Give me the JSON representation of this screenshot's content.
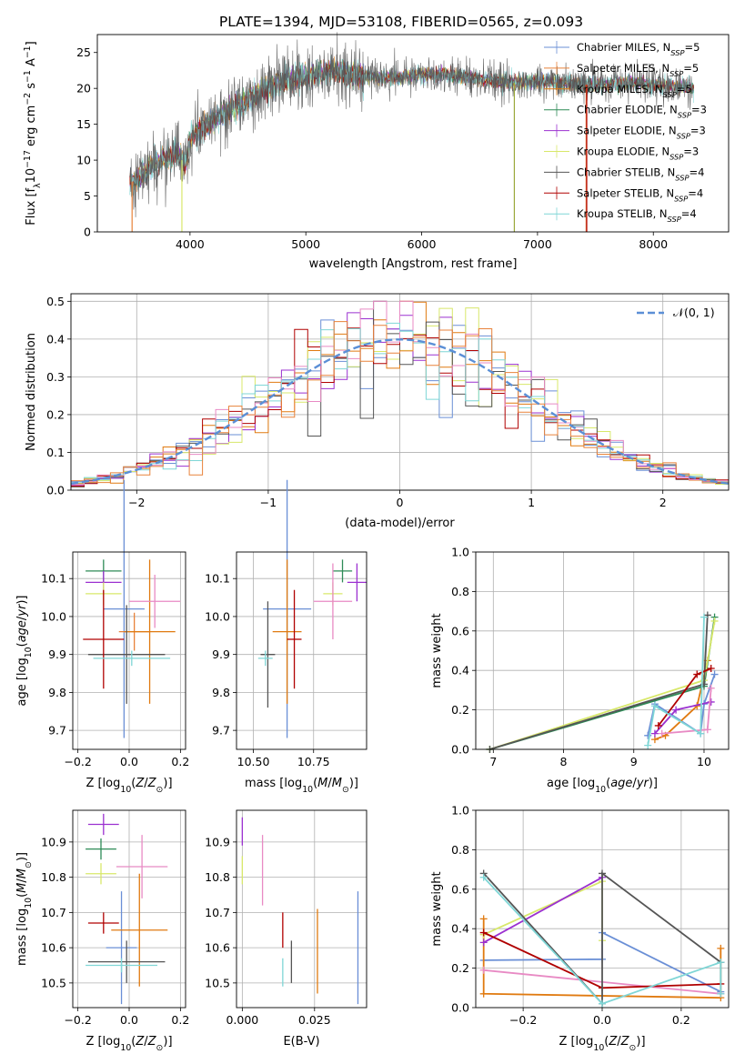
{
  "title": "PLATE=1394, MJD=53108, FIBERID=0565, z=0.093",
  "colors": {
    "Chabrier MILES": "#6a8fd6",
    "Salpeter MILES": "#e8823a",
    "Kroupa MILES": "#e07a10",
    "Chabrier ELODIE": "#2e8b57",
    "Salpeter ELODIE": "#9b30d0",
    "Kroupa ELODIE": "#d8e86a",
    "Chabrier STELIB": "#555555",
    "Salpeter STELIB": "#b00000",
    "Kroupa STELIB": "#7fd6d6",
    "pink": "#e88ac4",
    "olive": "#9aa83a"
  },
  "chart_data": [
    {
      "type": "line",
      "panel": "spectrum",
      "xlabel": "wavelength [Angstrom, rest frame]",
      "ylabel": "Flux [f_λ 10^-17 erg cm^-2 s^-1 A^-1]",
      "xlim": [
        3200,
        8650
      ],
      "ylim": [
        0,
        27.5
      ],
      "xticks": [
        "4000",
        "5000",
        "6000",
        "7000",
        "8000"
      ],
      "yticks": [
        "0",
        "5",
        "10",
        "15",
        "20",
        "25"
      ],
      "legend_position": "right",
      "legend": [
        {
          "label": "Chabrier MILES, N",
          "sub": "SSP",
          "suffix": "=5"
        },
        {
          "label": "Salpeter MILES, N",
          "sub": "SSP",
          "suffix": "=5"
        },
        {
          "label": "Kroupa MILES, N",
          "sub": "SSP",
          "suffix": "=5"
        },
        {
          "label": "Chabrier ELODIE, N",
          "sub": "SSP",
          "suffix": "=3"
        },
        {
          "label": "Salpeter ELODIE, N",
          "sub": "SSP",
          "suffix": "=3"
        },
        {
          "label": "Kroupa ELODIE, N",
          "sub": "SSP",
          "suffix": "=3"
        },
        {
          "label": "Chabrier STELIB, N",
          "sub": "SSP",
          "suffix": "=4"
        },
        {
          "label": "Salpeter STELIB, N",
          "sub": "SSP",
          "suffix": "=4"
        },
        {
          "label": "Kroupa STELIB, N",
          "sub": "SSP",
          "suffix": "=4"
        }
      ],
      "continuum_x": [
        3500,
        3700,
        3900,
        3960,
        4000,
        4200,
        4400,
        4600,
        4800,
        5000,
        5200,
        5400,
        5600,
        5800,
        6000,
        6200,
        6400,
        6600,
        6800,
        7000,
        7200,
        7400,
        7600,
        7800,
        8000,
        8200,
        8350
      ],
      "continuum_y": [
        7,
        9.5,
        11,
        9,
        13,
        15.5,
        17.5,
        19.5,
        21,
        21.5,
        22.5,
        22,
        21.5,
        21.5,
        22,
        22,
        21.5,
        21,
        20.8,
        21,
        20.8,
        20.5,
        20.5,
        20.8,
        20.5,
        20.2,
        20
      ]
    },
    {
      "type": "bar",
      "panel": "residual-histogram",
      "xlabel": "(data-model)/error",
      "ylabel": "Normed distribution",
      "xlim": [
        -2.5,
        2.5
      ],
      "ylim": [
        0,
        0.52
      ],
      "xticks": [
        "−2",
        "−1",
        "0",
        "1",
        "2"
      ],
      "yticks": [
        "0.0",
        "0.1",
        "0.2",
        "0.3",
        "0.4",
        "0.5"
      ],
      "grid": true,
      "legend": "𝒩(0, 1)",
      "legend_position": "top-right",
      "bin_width": 0.1,
      "bins_start": -2.5
    },
    {
      "type": "scatter",
      "panel": "age-vs-Z",
      "xlabel": "Z [log10(Z/Z⊙)]",
      "ylabel": "age  [log10(age/yr)]",
      "xlim": [
        -0.22,
        0.22
      ],
      "ylim": [
        9.65,
        10.17
      ],
      "xticks": [
        "−0.2",
        "0.0",
        "0.2"
      ],
      "yticks": [
        "9.7",
        "9.8",
        "9.9",
        "10.0",
        "10.1"
      ],
      "grid": true,
      "points": [
        {
          "s": "Chabrier MILES",
          "x": -0.02,
          "y": 10.02,
          "xe": 0.08,
          "ye": 0.34
        },
        {
          "s": "Salpeter MILES",
          "x": 0.02,
          "y": 9.96,
          "xe": 0.06,
          "ye": 0.05
        },
        {
          "s": "Kroupa MILES",
          "x": 0.08,
          "y": 9.96,
          "xe": 0.1,
          "ye": 0.19
        },
        {
          "s": "Chabrier ELODIE",
          "x": -0.1,
          "y": 10.12,
          "xe": 0.07,
          "ye": 0.03
        },
        {
          "s": "Salpeter ELODIE",
          "x": -0.1,
          "y": 10.09,
          "xe": 0.07,
          "ye": 0.03
        },
        {
          "s": "Kroupa ELODIE",
          "x": -0.1,
          "y": 10.06,
          "xe": 0.07,
          "ye": 0.03
        },
        {
          "s": "Chabrier STELIB",
          "x": -0.01,
          "y": 9.9,
          "xe": 0.15,
          "ye": 0.13
        },
        {
          "s": "Salpeter STELIB",
          "x": -0.1,
          "y": 9.94,
          "xe": 0.08,
          "ye": 0.13
        },
        {
          "s": "Kroupa STELIB",
          "x": 0.01,
          "y": 9.89,
          "xe": 0.15,
          "ye": 0.02
        },
        {
          "s": "pink",
          "x": 0.1,
          "y": 10.04,
          "xe": 0.1,
          "ye": 0.07
        }
      ]
    },
    {
      "type": "scatter",
      "panel": "age-vs-mass",
      "xlabel": "mass [log10(M/M⊙)]",
      "ylabel": "",
      "xlim": [
        10.43,
        10.97
      ],
      "ylim": [
        9.65,
        10.17
      ],
      "xticks": [
        "10.50",
        "10.75"
      ],
      "yticks": [
        "9.7",
        "9.8",
        "9.9",
        "10.0",
        "10.1"
      ],
      "grid": true,
      "points": [
        {
          "s": "Chabrier MILES",
          "x": 10.64,
          "y": 10.02,
          "xe": 0.1,
          "ye": 0.34
        },
        {
          "s": "Kroupa MILES",
          "x": 10.64,
          "y": 9.96,
          "xe": 0.06,
          "ye": 0.19
        },
        {
          "s": "Chabrier ELODIE",
          "x": 10.87,
          "y": 10.12,
          "xe": 0.04,
          "ye": 0.03
        },
        {
          "s": "Salpeter ELODIE",
          "x": 10.93,
          "y": 10.09,
          "xe": 0.04,
          "ye": 0.05
        },
        {
          "s": "Kroupa ELODIE",
          "x": 10.83,
          "y": 10.06,
          "xe": 0.04,
          "ye": 0.03
        },
        {
          "s": "Chabrier STELIB",
          "x": 10.56,
          "y": 9.9,
          "xe": 0.03,
          "ye": 0.14
        },
        {
          "s": "Salpeter STELIB",
          "x": 10.67,
          "y": 9.94,
          "xe": 0.03,
          "ye": 0.13
        },
        {
          "s": "Kroupa STELIB",
          "x": 10.55,
          "y": 9.89,
          "xe": 0.03,
          "ye": 0.02
        },
        {
          "s": "pink",
          "x": 10.83,
          "y": 10.04,
          "xe": 0.08,
          "ye": 0.1
        }
      ]
    },
    {
      "type": "line",
      "panel": "mass-weight-vs-age",
      "xlabel": "age  [log10(age/yr)]",
      "ylabel": "mass weight",
      "xlim": [
        6.75,
        10.35
      ],
      "ylim": [
        0,
        1
      ],
      "xticks": [
        "7",
        "8",
        "9",
        "10"
      ],
      "yticks": [
        "0.0",
        "0.2",
        "0.4",
        "0.6",
        "0.8",
        "1.0"
      ],
      "grid": true,
      "series": [
        {
          "s": "Chabrier MILES",
          "x": [
            9.2,
            9.3,
            9.95,
            10.0,
            10.15
          ],
          "y": [
            0.07,
            0.23,
            0.08,
            0.23,
            0.38
          ]
        },
        {
          "s": "Kroupa MILES",
          "x": [
            9.3,
            9.45,
            9.9,
            10.05
          ],
          "y": [
            0.05,
            0.07,
            0.22,
            0.45
          ]
        },
        {
          "s": "Chabrier ELODIE",
          "x": [
            6.95,
            10.0,
            10.15
          ],
          "y": [
            0.0,
            0.32,
            0.67
          ]
        },
        {
          "s": "Kroupa ELODIE",
          "x": [
            6.95,
            10.0,
            10.15
          ],
          "y": [
            0.0,
            0.35,
            0.65
          ]
        },
        {
          "s": "Salpeter ELODIE",
          "x": [
            9.3,
            9.6,
            10.1
          ],
          "y": [
            0.08,
            0.2,
            0.24
          ]
        },
        {
          "s": "Chabrier STELIB",
          "x": [
            6.95,
            10.0,
            10.05
          ],
          "y": [
            0.0,
            0.33,
            0.68
          ]
        },
        {
          "s": "Salpeter STELIB",
          "x": [
            9.35,
            9.9,
            10.1
          ],
          "y": [
            0.12,
            0.38,
            0.41
          ]
        },
        {
          "s": "pink",
          "x": [
            9.4,
            10.05,
            10.1
          ],
          "y": [
            0.08,
            0.1,
            0.31
          ]
        },
        {
          "s": "Kroupa STELIB",
          "x": [
            9.2,
            9.3,
            9.95,
            10.0
          ],
          "y": [
            0.02,
            0.22,
            0.08,
            0.67
          ]
        }
      ]
    },
    {
      "type": "scatter",
      "panel": "mass-vs-Z",
      "xlabel": "Z [log10(Z/Z⊙)]",
      "ylabel": "mass [log10(M/M⊙)]",
      "xlim": [
        -0.22,
        0.22
      ],
      "ylim": [
        10.43,
        10.99
      ],
      "xticks": [
        "−0.2",
        "0.0",
        "0.2"
      ],
      "yticks": [
        "10.5",
        "10.6",
        "10.7",
        "10.8",
        "10.9"
      ],
      "grid": true,
      "points": [
        {
          "s": "Chabrier MILES",
          "x": -0.03,
          "y": 10.6,
          "xe": 0.06,
          "ye": 0.16
        },
        {
          "s": "Kroupa MILES",
          "x": 0.04,
          "y": 10.65,
          "xe": 0.11,
          "ye": 0.16
        },
        {
          "s": "Chabrier ELODIE",
          "x": -0.11,
          "y": 10.88,
          "xe": 0.06,
          "ye": 0.03
        },
        {
          "s": "Salpeter ELODIE",
          "x": -0.1,
          "y": 10.95,
          "xe": 0.06,
          "ye": 0.03
        },
        {
          "s": "Kroupa ELODIE",
          "x": -0.11,
          "y": 10.81,
          "xe": 0.06,
          "ye": 0.03
        },
        {
          "s": "Chabrier STELIB",
          "x": -0.01,
          "y": 10.56,
          "xe": 0.15,
          "ye": 0.06
        },
        {
          "s": "Salpeter STELIB",
          "x": -0.1,
          "y": 10.67,
          "xe": 0.06,
          "ye": 0.03
        },
        {
          "s": "Kroupa STELIB",
          "x": -0.03,
          "y": 10.55,
          "xe": 0.14,
          "ye": 0.02
        },
        {
          "s": "pink",
          "x": 0.05,
          "y": 10.83,
          "xe": 0.1,
          "ye": 0.09
        }
      ]
    },
    {
      "type": "scatter",
      "panel": "mass-vs-EBV",
      "xlabel": "E(B-V)",
      "ylabel": "",
      "xlim": [
        -0.002,
        0.043
      ],
      "ylim": [
        10.43,
        10.99
      ],
      "xticks": [
        "0.000",
        "0.025"
      ],
      "yticks": [
        "10.5",
        "10.6",
        "10.7",
        "10.8",
        "10.9"
      ],
      "grid": true,
      "points": [
        {
          "s": "Chabrier MILES",
          "x": 0.04,
          "y": 10.6,
          "xe": 0,
          "ye": 0.16
        },
        {
          "s": "Kroupa MILES",
          "x": 0.026,
          "y": 10.59,
          "xe": 0,
          "ye": 0.12
        },
        {
          "s": "Salpeter ELODIE",
          "x": 0.0,
          "y": 10.93,
          "xe": 0,
          "ye": 0.04
        },
        {
          "s": "Kroupa ELODIE",
          "x": 0.0,
          "y": 10.82,
          "xe": 0,
          "ye": 0.04
        },
        {
          "s": "Chabrier STELIB",
          "x": 0.017,
          "y": 10.56,
          "xe": 0,
          "ye": 0.06
        },
        {
          "s": "Salpeter STELIB",
          "x": 0.014,
          "y": 10.65,
          "xe": 0,
          "ye": 0.05
        },
        {
          "s": "Kroupa STELIB",
          "x": 0.014,
          "y": 10.53,
          "xe": 0,
          "ye": 0.04
        },
        {
          "s": "pink",
          "x": 0.007,
          "y": 10.82,
          "xe": 0,
          "ye": 0.1
        }
      ]
    },
    {
      "type": "line",
      "panel": "mass-weight-vs-Z",
      "xlabel": "Z [log10(Z/Z⊙)]",
      "ylabel": "mass weight",
      "xlim": [
        -0.32,
        0.32
      ],
      "ylim": [
        0,
        1
      ],
      "xticks": [
        "−0.2",
        "0.0",
        "0.2"
      ],
      "yticks": [
        "0.0",
        "0.2",
        "0.4",
        "0.6",
        "0.8",
        "1.0"
      ],
      "grid": true,
      "series": [
        {
          "s": "Chabrier MILES",
          "x": [
            -0.3,
            0.0,
            0.0,
            0.3,
            0.3
          ],
          "y": [
            0.24,
            0.245,
            0.38,
            0.08,
            0.23
          ]
        },
        {
          "s": "Kroupa MILES",
          "x": [
            -0.3,
            -0.3,
            0.3,
            0.3
          ],
          "y": [
            0.45,
            0.07,
            0.05,
            0.3
          ]
        },
        {
          "s": "pink",
          "x": [
            -0.3,
            0.3
          ],
          "y": [
            0.19,
            0.07
          ]
        },
        {
          "s": "Kroupa ELODIE",
          "x": [
            -0.3,
            0.0,
            0.0
          ],
          "y": [
            0.37,
            0.64,
            0.34
          ]
        },
        {
          "s": "Salpeter ELODIE",
          "x": [
            -0.3,
            0.0
          ],
          "y": [
            0.33,
            0.66
          ]
        },
        {
          "s": "Salpeter STELIB",
          "x": [
            -0.3,
            0.0,
            0.3
          ],
          "y": [
            0.38,
            0.1,
            0.12
          ]
        },
        {
          "s": "Chabrier STELIB",
          "x": [
            -0.3,
            0.0,
            0.0,
            0.3
          ],
          "y": [
            0.68,
            0.02,
            0.68,
            0.23
          ]
        },
        {
          "s": "Kroupa STELIB",
          "x": [
            -0.3,
            0.0,
            0.3,
            0.3
          ],
          "y": [
            0.66,
            0.02,
            0.23,
            0.07
          ]
        }
      ]
    }
  ]
}
